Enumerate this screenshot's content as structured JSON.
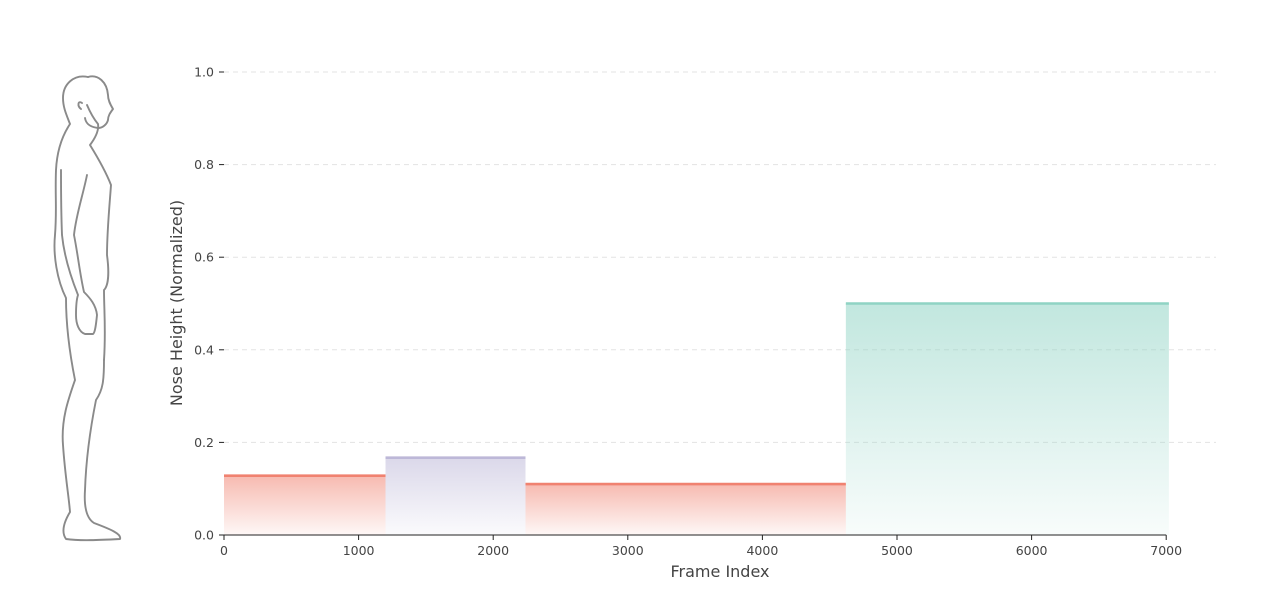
{
  "chart_data": {
    "type": "step-area",
    "xlabel": "Frame Index",
    "ylabel": "Nose Height (Normalized)",
    "xlim": [
      0,
      7370
    ],
    "ylim": [
      0,
      1.0
    ],
    "xticks": [
      0,
      1000,
      2000,
      3000,
      4000,
      5000,
      6000,
      7000
    ],
    "yticks": [
      0.0,
      0.2,
      0.4,
      0.6,
      0.8,
      1.0
    ],
    "ytick_labels": [
      "0.0",
      "0.2",
      "0.4",
      "0.6",
      "0.8",
      "1.0"
    ],
    "grid": "y-dashed",
    "segments": [
      {
        "x_start": 0,
        "x_end": 1200,
        "value": 0.128,
        "color": "#f08270"
      },
      {
        "x_start": 1200,
        "x_end": 2240,
        "value": 0.167,
        "color": "#bdb8d8"
      },
      {
        "x_start": 2240,
        "x_end": 4620,
        "value": 0.11,
        "color": "#f08270"
      },
      {
        "x_start": 4620,
        "x_end": 7020,
        "value": 0.5,
        "color": "#8fd3c4"
      }
    ]
  },
  "figure": {
    "icon": "standing-person-silhouette-icon",
    "color": "#8a8a8a"
  }
}
